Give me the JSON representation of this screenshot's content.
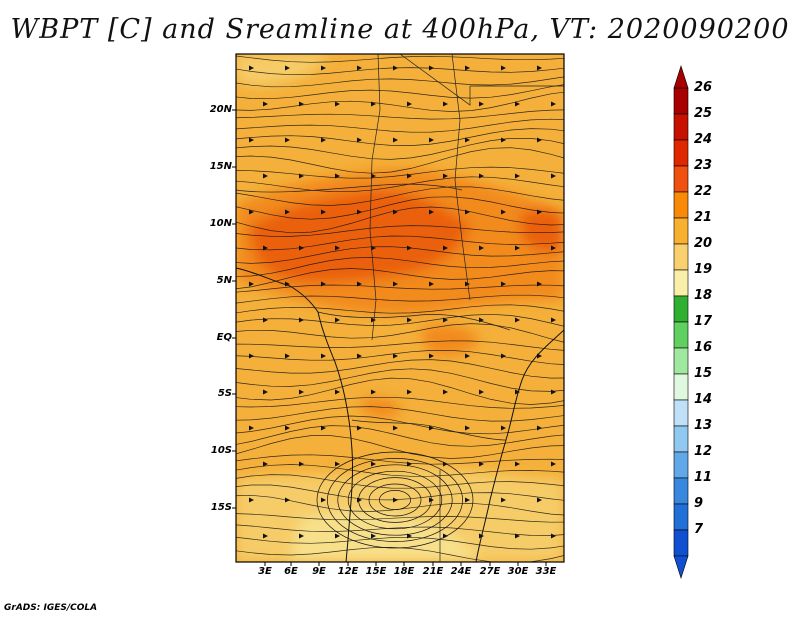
{
  "title": "WBPT [C] and Sreamline at 400hPa, VT: 2020090200",
  "footer": "GrADS: IGES/COLA",
  "lat_labels": [
    "20N",
    "15N",
    "10N",
    "5N",
    "EQ",
    "5S",
    "10S",
    "15S"
  ],
  "lon_labels": [
    "3E",
    "6E",
    "9E",
    "12E",
    "15E",
    "18E",
    "21E",
    "24E",
    "27E",
    "30E",
    "33E"
  ],
  "colorbar": {
    "labels": [
      "26",
      "25",
      "24",
      "23",
      "22",
      "21",
      "20",
      "19",
      "18",
      "17",
      "16",
      "15",
      "14",
      "13",
      "12",
      "11",
      "9",
      "7"
    ],
    "colors": [
      "#a80000",
      "#c81000",
      "#e02800",
      "#f05010",
      "#f88a08",
      "#f8b030",
      "#f8d070",
      "#f8f0a8",
      "#30b030",
      "#60d060",
      "#a0e8a0",
      "#e0f8e0",
      "#c0e0f8",
      "#90c8f0",
      "#60a8e8",
      "#3888e0",
      "#2070d8",
      "#1050d0"
    ]
  },
  "map_colors": {
    "base": "#f4b03a",
    "warm": "#f28a1a",
    "hot": "#ea6010",
    "cool": "#f6cc68",
    "pale": "#f8e08a"
  }
}
